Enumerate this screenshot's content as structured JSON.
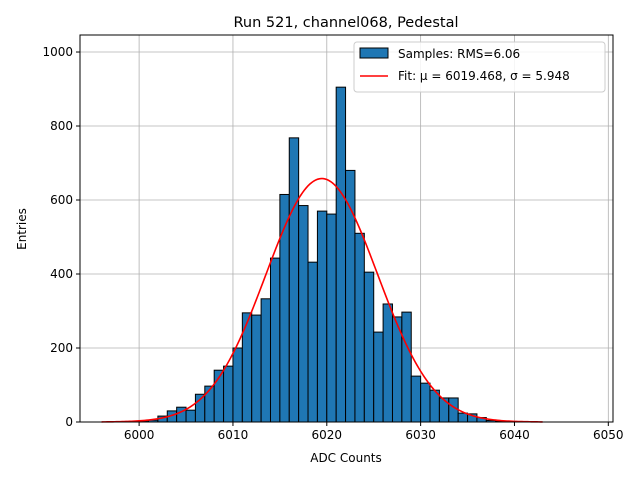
{
  "chart_data": {
    "type": "bar",
    "title": "Run 521, channel068, Pedestal",
    "xlabel": "ADC Counts",
    "ylabel": "Entries",
    "xlim": [
      5993.7,
      6050.5
    ],
    "ylim": [
      0,
      1046
    ],
    "xticks": [
      6000,
      6010,
      6020,
      6030,
      6040,
      6050
    ],
    "yticks": [
      0,
      200,
      400,
      600,
      800,
      1000
    ],
    "grid": true,
    "legend_position": "top-right",
    "bin_edges_start": 6000,
    "bin_width": 1,
    "values": [
      3,
      5,
      16,
      30,
      40,
      32,
      75,
      97,
      140,
      151,
      200,
      295,
      289,
      333,
      443,
      615,
      768,
      585,
      432,
      570,
      562,
      905,
      680,
      510,
      405,
      243,
      319,
      284,
      297,
      124,
      105,
      86,
      65,
      65,
      24,
      22,
      12,
      4,
      2
    ],
    "bar_color": "#1f77b4",
    "fit": {
      "mu": 6019.468,
      "sigma": 5.948,
      "amplitude": 658,
      "x_range": [
        5996,
        6043
      ],
      "color": "#ff0000"
    },
    "legend": [
      {
        "label": "Samples: RMS=6.06",
        "kind": "patch"
      },
      {
        "label": "Fit: μ = 6019.468, σ = 5.948",
        "kind": "line"
      }
    ]
  }
}
